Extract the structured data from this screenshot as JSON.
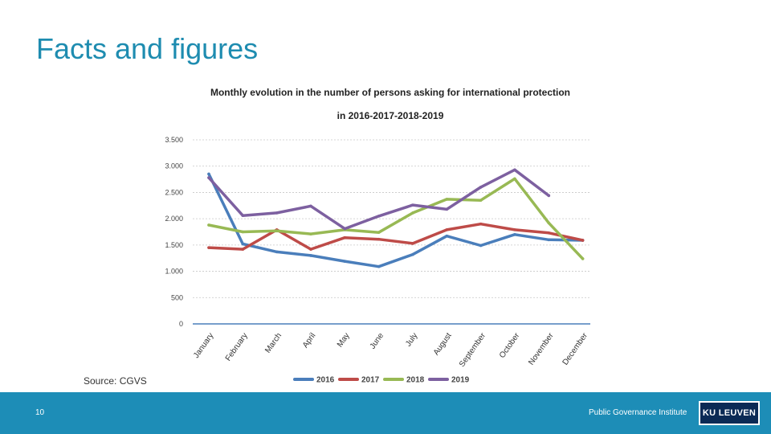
{
  "slide": {
    "title": "Facts and figures",
    "source": "Source: CGVS",
    "page_number": "10",
    "institute": "Public Governance Institute",
    "logo_text": "KU LEUVEN"
  },
  "colors": {
    "title": "#1e8cb0",
    "footer": "#1d8db7",
    "logo_bg": "#0b2a55"
  },
  "chart_data": {
    "type": "line",
    "title_line1": "Monthly evolution in the number of persons asking for international protection",
    "title_line2": "in 2016-2017-2018-2019",
    "categories": [
      "January",
      "February",
      "March",
      "April",
      "May",
      "June",
      "July",
      "August",
      "September",
      "October",
      "November",
      "December"
    ],
    "ylim": [
      0,
      3500
    ],
    "yticks": [
      0,
      500,
      1000,
      1500,
      2000,
      2500,
      3000,
      3500
    ],
    "ytick_labels": [
      "0",
      "500",
      "1.000",
      "1.500",
      "2.000",
      "2.500",
      "3.000",
      "3.500"
    ],
    "legend_position": "bottom",
    "grid": true,
    "series": [
      {
        "name": "2016",
        "color": "#4a7ebb",
        "values": [
          2850,
          1520,
          1370,
          1300,
          1190,
          1090,
          1320,
          1670,
          1490,
          1700,
          1600,
          1590
        ]
      },
      {
        "name": "2017",
        "color": "#be4b48",
        "values": [
          1450,
          1420,
          1790,
          1420,
          1640,
          1610,
          1530,
          1790,
          1900,
          1790,
          1730,
          1590
        ]
      },
      {
        "name": "2018",
        "color": "#98b954",
        "values": [
          1880,
          1750,
          1770,
          1710,
          1790,
          1740,
          2110,
          2370,
          2350,
          2760,
          1920,
          1240
        ]
      },
      {
        "name": "2019",
        "color": "#7d60a0",
        "values": [
          2780,
          2060,
          2110,
          2240,
          1810,
          2050,
          2260,
          2180,
          2600,
          2930,
          2440,
          null
        ]
      }
    ]
  }
}
